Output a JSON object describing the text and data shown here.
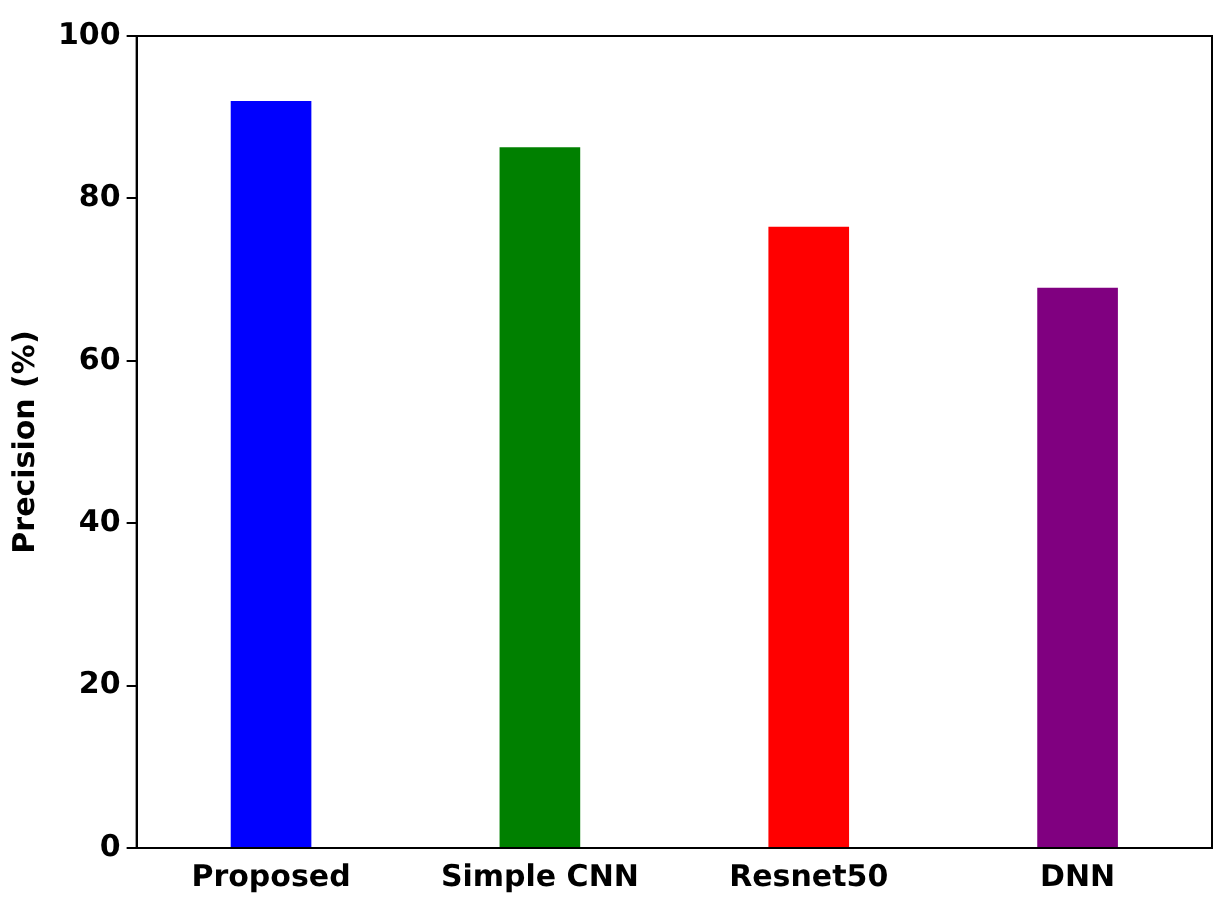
{
  "chart_data": {
    "type": "bar",
    "ylabel": "Precision (%)",
    "categories": [
      "Proposed",
      "Simple CNN",
      "Resnet50",
      "DNN"
    ],
    "values": [
      92,
      86.3,
      76.5,
      69
    ],
    "colors": [
      "#0000ff",
      "#008000",
      "#ff0000",
      "#800080"
    ],
    "ylim": [
      0,
      100
    ],
    "yticks": [
      0,
      20,
      40,
      60,
      80,
      100
    ],
    "grid": false,
    "legend": false
  }
}
